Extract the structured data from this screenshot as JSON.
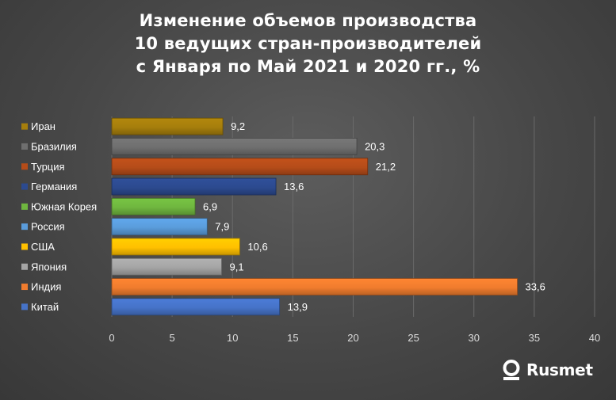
{
  "title_lines": [
    "Изменение объемов производства",
    "10 ведущих стран-производителей",
    "с Января по Май 2021 и 2020 гг., %"
  ],
  "logo": {
    "text": "Rusmet",
    "icon": "rusmet-logo-icon"
  },
  "chart_data": {
    "type": "bar",
    "orientation": "horizontal",
    "title": "Изменение объемов производства 10 ведущих стран-производителей с Января по Май 2021 и 2020 гг., %",
    "categories": [
      "Иран",
      "Бразилия",
      "Турция",
      "Германия",
      "Южная Корея",
      "Россия",
      "США",
      "Япония",
      "Индия",
      "Китай"
    ],
    "values": [
      9.2,
      20.3,
      21.2,
      13.6,
      6.9,
      7.9,
      10.6,
      9.1,
      33.6,
      13.9
    ],
    "value_labels": [
      "9,2",
      "20,3",
      "21,2",
      "13,6",
      "6,9",
      "7,9",
      "10,6",
      "9,1",
      "33,6",
      "13,9"
    ],
    "colors": [
      "#a67e0c",
      "#6f6f6f",
      "#b54c19",
      "#2c4a8f",
      "#6fb63f",
      "#5a9cdb",
      "#ffc000",
      "#a5a5a5",
      "#f07c2e",
      "#4673c8"
    ],
    "xlim": [
      0,
      40
    ],
    "xticks": [
      0,
      5,
      10,
      15,
      20,
      25,
      30,
      35,
      40
    ],
    "grid": true,
    "legend_position": "left"
  }
}
